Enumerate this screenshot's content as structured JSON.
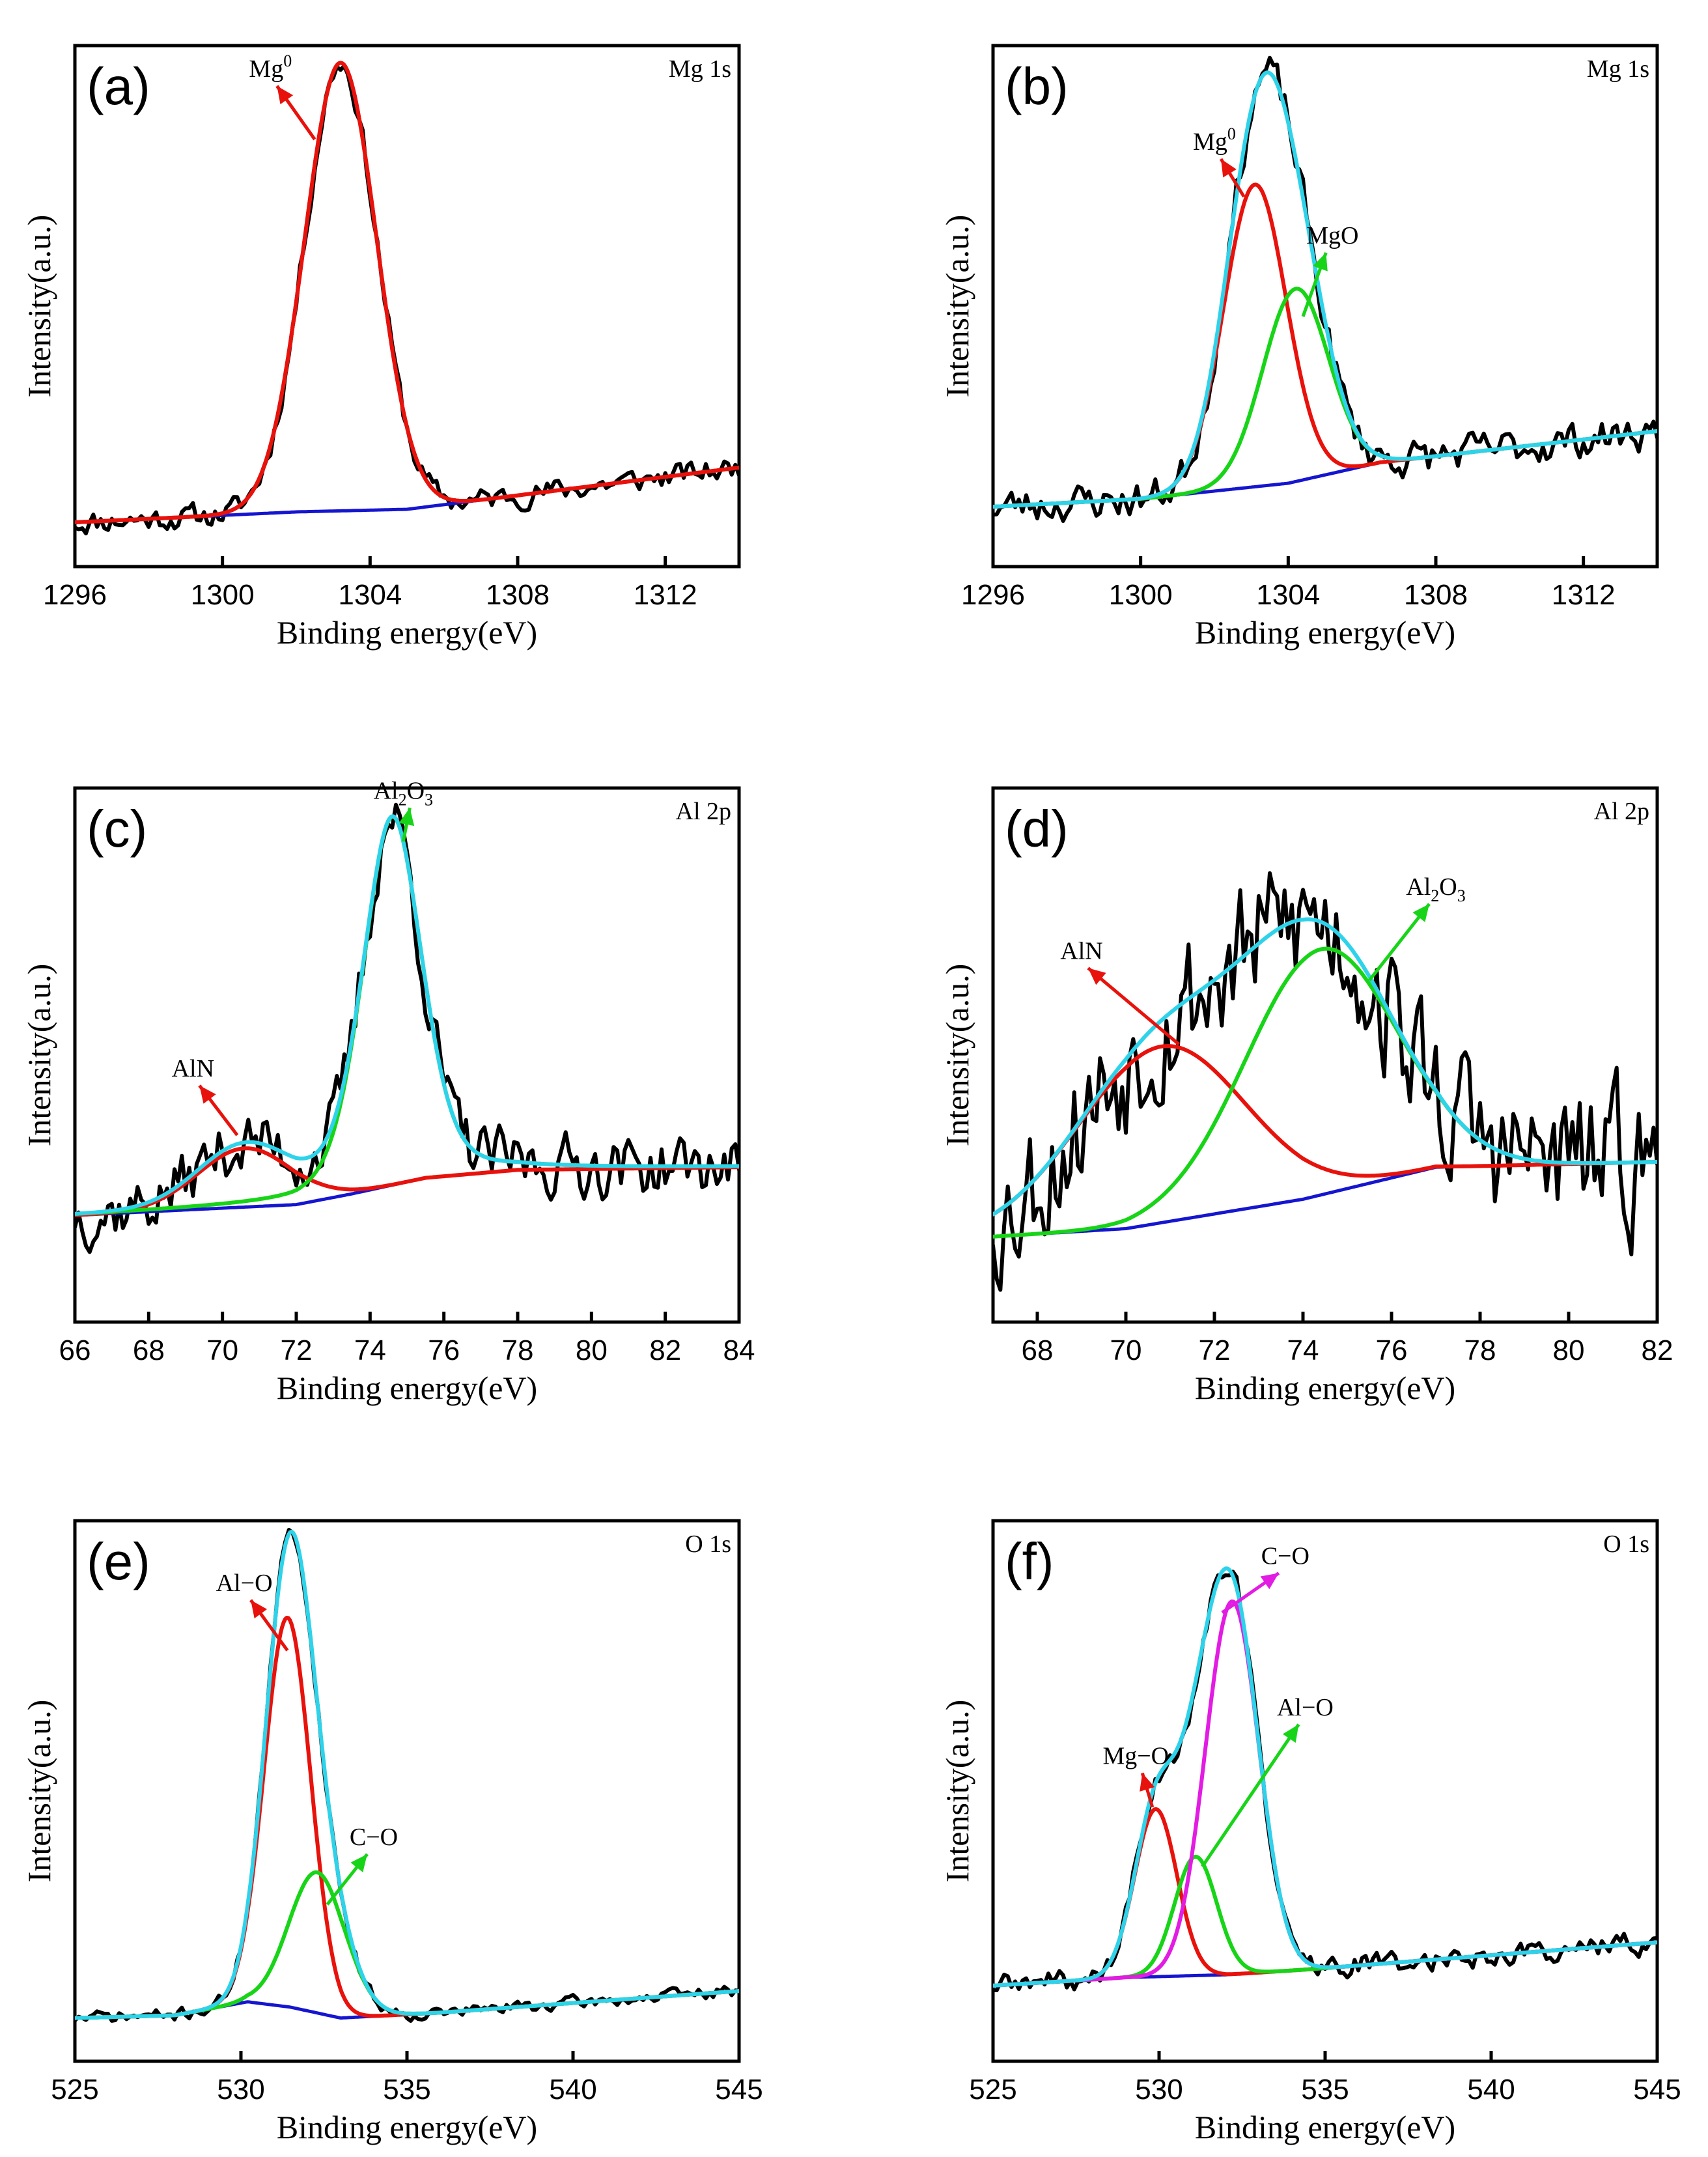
{
  "colors": {
    "raw": "#000000",
    "background": "#1515d0",
    "red": "#e8120c",
    "green": "#18d418",
    "cyan": "#2ed3ea",
    "magenta": "#e21ce2"
  },
  "chart_data": [
    {
      "id": "a",
      "type": "line",
      "panel_label": "(a)",
      "core_level": "Mg 1s",
      "xlabel": "Binding energy(eV)",
      "ylabel": "Intensity(a.u.)",
      "xlim": [
        1296,
        1314
      ],
      "xticks": [
        1296,
        1300,
        1304,
        1308,
        1312
      ],
      "ylim": [
        0,
        1.0
      ],
      "noise_amp": 0.02,
      "noise_seed": 11,
      "background": {
        "points": [
          [
            1296,
            0.085
          ],
          [
            1302,
            0.105
          ],
          [
            1305,
            0.11
          ],
          [
            1314,
            0.19
          ]
        ]
      },
      "components": [
        {
          "name": "Mg0",
          "label": "Mg",
          "superscript": "0",
          "center": 1303.2,
          "height": 0.86,
          "fwhm": 2.3,
          "shape": "gauss",
          "color": "red"
        }
      ],
      "envelope": false,
      "annotations": [
        {
          "text": "Mg",
          "sup": "0",
          "from": [
            1302.5,
            0.82
          ],
          "label_at": [
            1301.3,
            0.94
          ],
          "color": "red"
        }
      ]
    },
    {
      "id": "b",
      "type": "line",
      "panel_label": "(b)",
      "core_level": "Mg 1s",
      "xlabel": "Binding energy(eV)",
      "ylabel": "Intensity(a.u.)",
      "xlim": [
        1296,
        1314
      ],
      "xticks": [
        1296,
        1300,
        1304,
        1308,
        1312
      ],
      "ylim": [
        0,
        1.0
      ],
      "noise_amp": 0.03,
      "noise_seed": 23,
      "background": {
        "points": [
          [
            1296,
            0.115
          ],
          [
            1300,
            0.13
          ],
          [
            1304,
            0.16
          ],
          [
            1306.5,
            0.2
          ],
          [
            1314,
            0.26
          ]
        ]
      },
      "components": [
        {
          "name": "Mg0",
          "label": "Mg",
          "superscript": "0",
          "center": 1303.1,
          "height": 0.58,
          "fwhm": 2.0,
          "shape": "gauss",
          "color": "red"
        },
        {
          "name": "MgO",
          "label": "MgO",
          "center": 1304.2,
          "height": 0.37,
          "fwhm": 2.1,
          "shape": "gauss",
          "color": "green"
        }
      ],
      "envelope": true,
      "annotations": [
        {
          "text": "Mg",
          "sup": "0",
          "from": [
            1302.8,
            0.71
          ],
          "label_at": [
            1302.0,
            0.8
          ],
          "color": "red"
        },
        {
          "text": "MgO",
          "from": [
            1304.4,
            0.48
          ],
          "label_at": [
            1305.2,
            0.62
          ],
          "color": "green"
        }
      ]
    },
    {
      "id": "c",
      "type": "line",
      "panel_label": "(c)",
      "core_level": "Al 2p",
      "xlabel": "Binding energy(eV)",
      "ylabel": "Intensity(a.u.)",
      "xlim": [
        66,
        84
      ],
      "xticks": [
        66,
        68,
        70,
        72,
        74,
        76,
        78,
        80,
        82,
        84
      ],
      "ylim": [
        0,
        1.0
      ],
      "noise_amp": 0.05,
      "noise_seed": 37,
      "background": {
        "points": [
          [
            66,
            0.2
          ],
          [
            72,
            0.22
          ],
          [
            73.5,
            0.24
          ],
          [
            75.5,
            0.27
          ],
          [
            78,
            0.285
          ],
          [
            84,
            0.29
          ]
        ]
      },
      "components": [
        {
          "name": "AlN",
          "label": "AlN",
          "center": 70.6,
          "height": 0.11,
          "fwhm": 3.0,
          "shape": "gauss",
          "color": "red"
        },
        {
          "name": "Al2O3",
          "label": "Al2O3",
          "center": 74.6,
          "height": 0.69,
          "fwhm": 1.9,
          "shape": "voigt",
          "color": "green"
        }
      ],
      "envelope": true,
      "annotations": [
        {
          "text": "AlN",
          "from": [
            70.4,
            0.35
          ],
          "label_at": [
            69.2,
            0.46
          ],
          "color": "red"
        },
        {
          "text": "Al",
          "sub1": "2",
          "text2": "O",
          "sub2": "3",
          "from": [
            74.9,
            0.9
          ],
          "label_at": [
            74.9,
            0.98
          ],
          "color": "green"
        }
      ]
    },
    {
      "id": "d",
      "type": "line",
      "panel_label": "(d)",
      "core_level": "Al 2p",
      "xlabel": "Binding energy(eV)",
      "ylabel": "Intensity(a.u.)",
      "xlim": [
        67,
        82
      ],
      "xticks": [
        68,
        70,
        72,
        74,
        76,
        78,
        80,
        82
      ],
      "ylim": [
        0,
        1.0
      ],
      "noise_amp": 0.12,
      "noise_seed": 53,
      "background": {
        "points": [
          [
            67,
            0.16
          ],
          [
            70,
            0.175
          ],
          [
            74,
            0.23
          ],
          [
            77,
            0.29
          ],
          [
            82,
            0.3
          ]
        ]
      },
      "components": [
        {
          "name": "AlN",
          "label": "AlN",
          "center": 70.8,
          "height": 0.33,
          "fwhm": 4.4,
          "shape": "gauss",
          "color": "red"
        },
        {
          "name": "Al2O3",
          "label": "Al2O3",
          "center": 74.4,
          "height": 0.46,
          "fwhm": 4.0,
          "shape": "gauss",
          "color": "green"
        }
      ],
      "envelope": true,
      "annotations": [
        {
          "text": "AlN",
          "from": [
            71.2,
            0.52
          ],
          "label_at": [
            69.0,
            0.68
          ],
          "color": "red"
        },
        {
          "text": "Al",
          "sub1": "2",
          "text2": "O",
          "sub2": "3",
          "from": [
            75.5,
            0.64
          ],
          "label_at": [
            77.0,
            0.8
          ],
          "color": "green"
        }
      ]
    },
    {
      "id": "e",
      "type": "line",
      "panel_label": "(e)",
      "core_level": "O 1s",
      "xlabel": "Binding energy(eV)",
      "ylabel": "Intensity(a.u.)",
      "xlim": [
        525,
        545
      ],
      "xticks": [
        525,
        530,
        535,
        540,
        545
      ],
      "ylim": [
        0,
        1.0
      ],
      "noise_amp": 0.01,
      "noise_seed": 71,
      "background": {
        "points": [
          [
            525,
            0.08
          ],
          [
            528,
            0.085
          ],
          [
            530.2,
            0.11
          ],
          [
            531.5,
            0.1
          ],
          [
            533,
            0.08
          ],
          [
            536,
            0.09
          ],
          [
            545,
            0.13
          ]
        ]
      },
      "components": [
        {
          "name": "Al-O",
          "label": "Al−O",
          "center": 531.4,
          "height": 0.72,
          "fwhm": 1.65,
          "shape": "gauss",
          "color": "red"
        },
        {
          "name": "C-O",
          "label": "C−O",
          "center": 532.3,
          "height": 0.26,
          "fwhm": 2.0,
          "shape": "gauss",
          "color": "green"
        }
      ],
      "envelope": true,
      "annotations": [
        {
          "text": "Al−O",
          "from": [
            531.4,
            0.76
          ],
          "label_at": [
            530.1,
            0.87
          ],
          "color": "red"
        },
        {
          "text": "C−O",
          "from": [
            532.6,
            0.29
          ],
          "label_at": [
            534.0,
            0.4
          ],
          "color": "green"
        }
      ]
    },
    {
      "id": "f",
      "type": "line",
      "panel_label": "(f)",
      "core_level": "O 1s",
      "xlabel": "Binding energy(eV)",
      "ylabel": "Intensity(a.u.)",
      "xlim": [
        525,
        545
      ],
      "xticks": [
        525,
        530,
        535,
        540,
        545
      ],
      "ylim": [
        0,
        1.0
      ],
      "noise_amp": 0.018,
      "noise_seed": 89,
      "background": {
        "points": [
          [
            525,
            0.14
          ],
          [
            529,
            0.155
          ],
          [
            532,
            0.16
          ],
          [
            534.5,
            0.17
          ],
          [
            545,
            0.22
          ]
        ]
      },
      "components": [
        {
          "name": "Mg-O",
          "label": "Mg−O",
          "center": 529.9,
          "height": 0.31,
          "fwhm": 1.5,
          "shape": "gauss",
          "color": "red"
        },
        {
          "name": "Al-O",
          "label": "Al−O",
          "center": 531.1,
          "height": 0.22,
          "fwhm": 1.5,
          "shape": "gauss",
          "color": "green"
        },
        {
          "name": "C-O",
          "label": "C−O",
          "center": 532.2,
          "height": 0.69,
          "fwhm": 1.9,
          "shape": "gauss",
          "color": "magenta"
        }
      ],
      "envelope": true,
      "annotations": [
        {
          "text": "Mg−O",
          "from": [
            529.8,
            0.47
          ],
          "label_at": [
            529.3,
            0.55
          ],
          "color": "red"
        },
        {
          "text": "C−O",
          "from": [
            531.9,
            0.83
          ],
          "label_at": [
            533.8,
            0.92
          ],
          "color": "magenta"
        },
        {
          "text": "Al−O",
          "from": [
            531.3,
            0.36
          ],
          "label_at": [
            534.4,
            0.64
          ],
          "color": "green"
        }
      ]
    }
  ]
}
